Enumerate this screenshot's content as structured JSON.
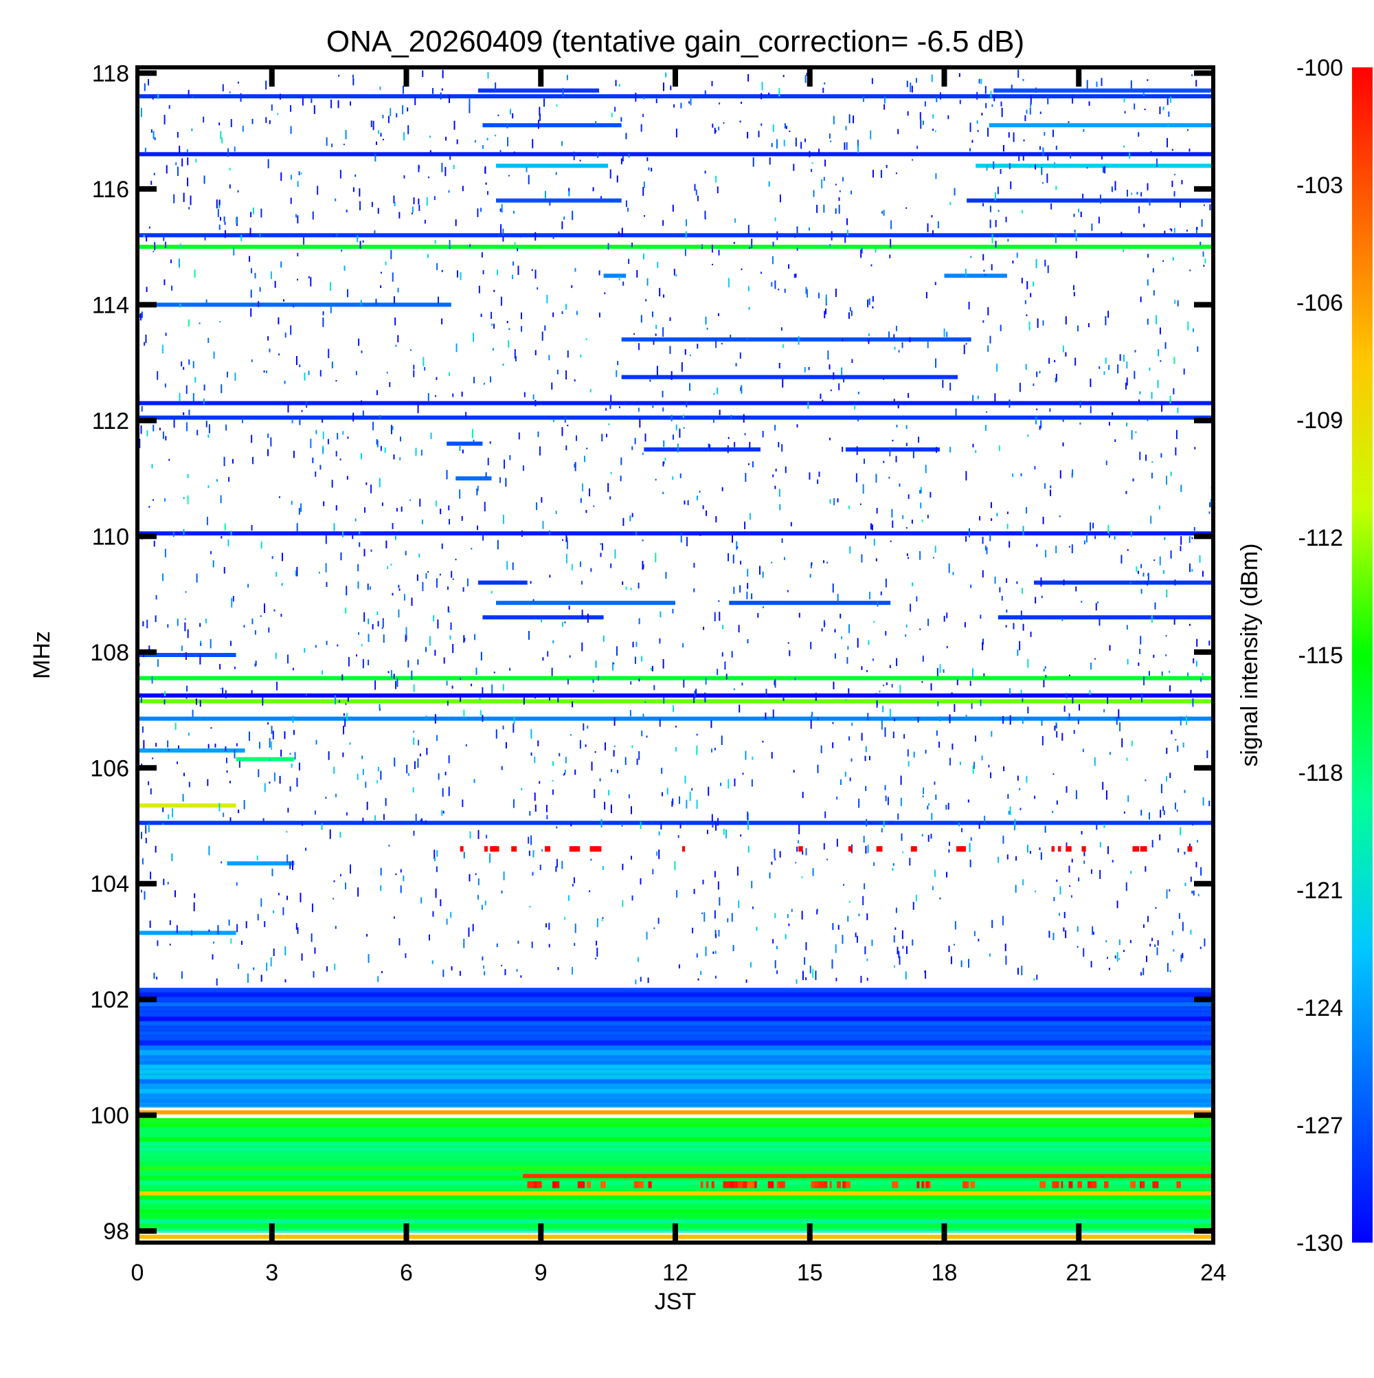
{
  "chart_data": {
    "type": "heatmap",
    "title": "ONA_20260409 (tentative gain_correction= -6.5 dB)",
    "xlabel": "JST",
    "ylabel": "MHz",
    "colorbar_label": "signal intensity (dBm)",
    "xlim": [
      0,
      24
    ],
    "ylim": [
      97.8,
      118.1
    ],
    "xticks": [
      0,
      3,
      6,
      9,
      12,
      15,
      18,
      21,
      24
    ],
    "xtick_labels": [
      "0",
      "3",
      "6",
      "9",
      "12",
      "15",
      "18",
      "21",
      "24"
    ],
    "yticks": [
      98,
      100,
      102,
      104,
      106,
      108,
      110,
      112,
      114,
      116,
      118
    ],
    "ytick_labels": [
      "98",
      "100",
      "102",
      "104",
      "106",
      "108",
      "110",
      "112",
      "114",
      "116",
      "118"
    ],
    "clim": [
      -130,
      -100
    ],
    "cticks": [
      -100,
      -103,
      -106,
      -109,
      -112,
      -115,
      -118,
      -121,
      -124,
      -127,
      -130
    ],
    "ctick_labels": [
      "-100",
      "-103",
      "-106",
      "-109",
      "-112",
      "-115",
      "-118",
      "-121",
      "-124",
      "-127",
      "-130"
    ],
    "colormap": [
      "#0000ff",
      "#0064ff",
      "#00c8ff",
      "#00ff96",
      "#00ff00",
      "#c8ff00",
      "#ffc800",
      "#ff6400",
      "#ff0000"
    ],
    "continuous_bands": [
      {
        "freq_mhz": 117.6,
        "x_start": 0,
        "x_end": 24,
        "intensity_dbm": -128
      },
      {
        "freq_mhz": 116.6,
        "x_start": 0,
        "x_end": 24,
        "intensity_dbm": -129
      },
      {
        "freq_mhz": 115.2,
        "x_start": 0,
        "x_end": 24,
        "intensity_dbm": -128
      },
      {
        "freq_mhz": 115.0,
        "x_start": 0,
        "x_end": 24,
        "intensity_dbm": -116
      },
      {
        "freq_mhz": 112.3,
        "x_start": 0,
        "x_end": 24,
        "intensity_dbm": -129
      },
      {
        "freq_mhz": 112.05,
        "x_start": 0,
        "x_end": 24,
        "intensity_dbm": -128
      },
      {
        "freq_mhz": 110.05,
        "x_start": 0,
        "x_end": 24,
        "intensity_dbm": -129
      },
      {
        "freq_mhz": 107.55,
        "x_start": 0,
        "x_end": 24,
        "intensity_dbm": -116
      },
      {
        "freq_mhz": 107.25,
        "x_start": 0,
        "x_end": 24,
        "intensity_dbm": -130
      },
      {
        "freq_mhz": 107.15,
        "x_start": 0,
        "x_end": 24,
        "intensity_dbm": -113
      },
      {
        "freq_mhz": 106.85,
        "x_start": 0,
        "x_end": 24,
        "intensity_dbm": -125
      },
      {
        "freq_mhz": 105.05,
        "x_start": 0,
        "x_end": 24,
        "intensity_dbm": -128
      },
      {
        "freq_mhz": 100.05,
        "x_start": 0,
        "x_end": 24,
        "intensity_dbm": -106
      },
      {
        "freq_mhz": 98.65,
        "x_start": 0,
        "x_end": 24,
        "intensity_dbm": -108
      },
      {
        "freq_mhz": 97.9,
        "x_start": 0,
        "x_end": 24,
        "intensity_dbm": -107
      }
    ],
    "partial_bands": [
      {
        "freq_mhz": 117.7,
        "x_start": 7.6,
        "x_end": 10.3,
        "intensity_dbm": -128
      },
      {
        "freq_mhz": 117.7,
        "x_start": 19.1,
        "x_end": 24,
        "intensity_dbm": -127
      },
      {
        "freq_mhz": 117.1,
        "x_start": 7.7,
        "x_end": 10.8,
        "intensity_dbm": -127
      },
      {
        "freq_mhz": 117.1,
        "x_start": 19.0,
        "x_end": 24,
        "intensity_dbm": -124
      },
      {
        "freq_mhz": 116.4,
        "x_start": 8.0,
        "x_end": 10.5,
        "intensity_dbm": -123
      },
      {
        "freq_mhz": 116.4,
        "x_start": 18.7,
        "x_end": 24,
        "intensity_dbm": -122
      },
      {
        "freq_mhz": 115.8,
        "x_start": 8.0,
        "x_end": 10.8,
        "intensity_dbm": -127
      },
      {
        "freq_mhz": 115.8,
        "x_start": 18.5,
        "x_end": 24,
        "intensity_dbm": -128
      },
      {
        "freq_mhz": 114.5,
        "x_start": 10.4,
        "x_end": 10.9,
        "intensity_dbm": -125
      },
      {
        "freq_mhz": 114.5,
        "x_start": 18.0,
        "x_end": 19.4,
        "intensity_dbm": -125
      },
      {
        "freq_mhz": 114.0,
        "x_start": 0,
        "x_end": 7.0,
        "intensity_dbm": -126
      },
      {
        "freq_mhz": 112.75,
        "x_start": 10.8,
        "x_end": 18.3,
        "intensity_dbm": -128
      },
      {
        "freq_mhz": 113.4,
        "x_start": 10.8,
        "x_end": 18.6,
        "intensity_dbm": -127
      },
      {
        "freq_mhz": 111.5,
        "x_start": 11.3,
        "x_end": 13.9,
        "intensity_dbm": -128
      },
      {
        "freq_mhz": 111.5,
        "x_start": 15.8,
        "x_end": 17.9,
        "intensity_dbm": -128
      },
      {
        "freq_mhz": 111.6,
        "x_start": 6.9,
        "x_end": 7.7,
        "intensity_dbm": -127
      },
      {
        "freq_mhz": 111.0,
        "x_start": 7.1,
        "x_end": 7.9,
        "intensity_dbm": -126
      },
      {
        "freq_mhz": 109.2,
        "x_start": 7.6,
        "x_end": 8.7,
        "intensity_dbm": -128
      },
      {
        "freq_mhz": 109.2,
        "x_start": 20.0,
        "x_end": 24,
        "intensity_dbm": -128
      },
      {
        "freq_mhz": 108.85,
        "x_start": 8.0,
        "x_end": 12.0,
        "intensity_dbm": -126
      },
      {
        "freq_mhz": 108.85,
        "x_start": 13.2,
        "x_end": 16.8,
        "intensity_dbm": -127
      },
      {
        "freq_mhz": 108.6,
        "x_start": 7.7,
        "x_end": 10.4,
        "intensity_dbm": -128
      },
      {
        "freq_mhz": 108.6,
        "x_start": 19.2,
        "x_end": 24,
        "intensity_dbm": -128
      },
      {
        "freq_mhz": 107.95,
        "x_start": 0,
        "x_end": 2.2,
        "intensity_dbm": -127
      },
      {
        "freq_mhz": 106.3,
        "x_start": 0,
        "x_end": 2.4,
        "intensity_dbm": -124
      },
      {
        "freq_mhz": 106.15,
        "x_start": 2.2,
        "x_end": 3.5,
        "intensity_dbm": -118
      },
      {
        "freq_mhz": 105.35,
        "x_start": 0,
        "x_end": 2.2,
        "intensity_dbm": -110
      },
      {
        "freq_mhz": 104.35,
        "x_start": 2.0,
        "x_end": 3.5,
        "intensity_dbm": -124
      },
      {
        "freq_mhz": 103.15,
        "x_start": 0,
        "x_end": 2.2,
        "intensity_dbm": -124
      },
      {
        "freq_mhz": 98.95,
        "x_start": 8.6,
        "x_end": 24,
        "intensity_dbm": -102
      }
    ],
    "broadband_regions": [
      {
        "freq_start_mhz": 101.2,
        "freq_end_mhz": 102.2,
        "x_start": 0,
        "x_end": 24,
        "intensity_dbm": -128
      },
      {
        "freq_start_mhz": 100.15,
        "freq_end_mhz": 101.2,
        "x_start": 0,
        "x_end": 24,
        "intensity_dbm": -124
      },
      {
        "freq_start_mhz": 98.0,
        "freq_end_mhz": 99.95,
        "x_start": 0,
        "x_end": 24,
        "intensity_dbm": -117
      }
    ],
    "strong_bursts_dbm": -100
  }
}
